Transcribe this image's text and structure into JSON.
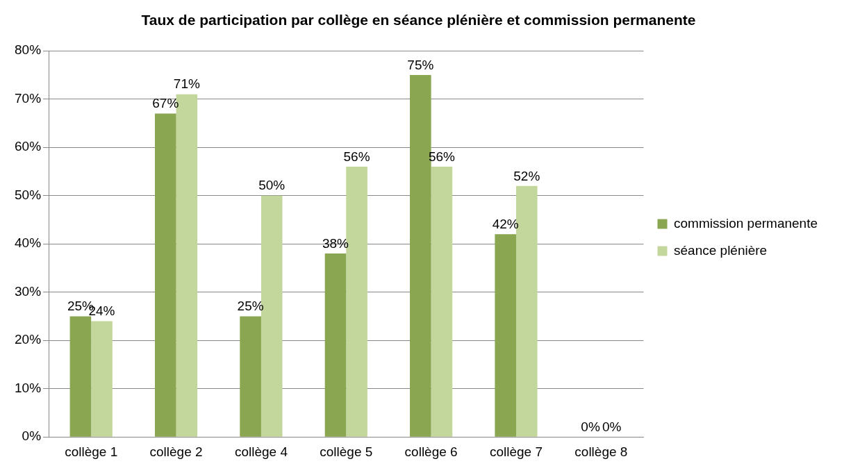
{
  "chart_data": {
    "type": "bar",
    "title": "Taux de participation par collège en séance plénière et commission permanente",
    "categories": [
      "collège 1",
      "collège 2",
      "collège 4",
      "collège 5",
      "collège 6",
      "collège 7",
      "collège 8"
    ],
    "series": [
      {
        "name": "commission permanente",
        "color": "#8aa650",
        "values": [
          25,
          67,
          25,
          38,
          75,
          42,
          0
        ],
        "value_labels": [
          "25%",
          "67%",
          "25%",
          "38%",
          "75%",
          "42%",
          "0%"
        ]
      },
      {
        "name": "séance plénière",
        "color": "#c3d69b",
        "values": [
          24,
          71,
          50,
          56,
          56,
          52,
          0
        ],
        "value_labels": [
          "24%",
          "71%",
          "50%",
          "56%",
          "56%",
          "52%",
          "0%"
        ]
      }
    ],
    "ylim": [
      0,
      80
    ],
    "yticks": [
      {
        "value": 0,
        "label": "0%"
      },
      {
        "value": 10,
        "label": "10%"
      },
      {
        "value": 20,
        "label": "20%"
      },
      {
        "value": 30,
        "label": "30%"
      },
      {
        "value": 40,
        "label": "40%"
      },
      {
        "value": 50,
        "label": "50%"
      },
      {
        "value": 60,
        "label": "60%"
      },
      {
        "value": 70,
        "label": "70%"
      },
      {
        "value": 80,
        "label": "80%"
      }
    ],
    "grid": "y",
    "legend": "right"
  }
}
